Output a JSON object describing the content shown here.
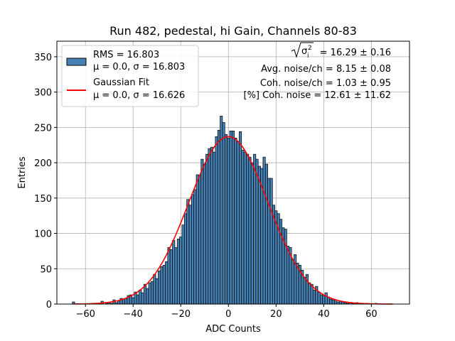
{
  "chart_data": {
    "type": "bar",
    "title": "Run 482, pedestal, hi Gain, Channels 80-83",
    "xlabel": "ADC Counts",
    "ylabel": "Entries",
    "xlim": [
      -72,
      76
    ],
    "ylim": [
      0,
      372
    ],
    "xticks": [
      -60,
      -40,
      -20,
      0,
      20,
      40,
      60
    ],
    "yticks": [
      0,
      50,
      100,
      150,
      200,
      250,
      300,
      350
    ],
    "grid": true,
    "bin_width": 1,
    "bins": [
      {
        "x": -65,
        "y": 3
      },
      {
        "x": -54,
        "y": 1
      },
      {
        "x": -53,
        "y": 4
      },
      {
        "x": -51,
        "y": 1
      },
      {
        "x": -50,
        "y": 2
      },
      {
        "x": -49,
        "y": 1
      },
      {
        "x": -48,
        "y": 6
      },
      {
        "x": -47,
        "y": 2
      },
      {
        "x": -46,
        "y": 5
      },
      {
        "x": -45,
        "y": 8
      },
      {
        "x": -44,
        "y": 7
      },
      {
        "x": -43,
        "y": 8
      },
      {
        "x": -42,
        "y": 12
      },
      {
        "x": -41,
        "y": 13
      },
      {
        "x": -40,
        "y": 9
      },
      {
        "x": -39,
        "y": 17
      },
      {
        "x": -38,
        "y": 13
      },
      {
        "x": -37,
        "y": 20
      },
      {
        "x": -36,
        "y": 16
      },
      {
        "x": -35,
        "y": 28
      },
      {
        "x": -34,
        "y": 22
      },
      {
        "x": -33,
        "y": 30
      },
      {
        "x": -32,
        "y": 32
      },
      {
        "x": -31,
        "y": 42
      },
      {
        "x": -30,
        "y": 36
      },
      {
        "x": -29,
        "y": 47
      },
      {
        "x": -28,
        "y": 53
      },
      {
        "x": -27,
        "y": 55
      },
      {
        "x": -26,
        "y": 60
      },
      {
        "x": -25,
        "y": 80
      },
      {
        "x": -24,
        "y": 77
      },
      {
        "x": -23,
        "y": 90
      },
      {
        "x": -22,
        "y": 80
      },
      {
        "x": -21,
        "y": 92
      },
      {
        "x": -20,
        "y": 95
      },
      {
        "x": -19,
        "y": 112
      },
      {
        "x": -18,
        "y": 128
      },
      {
        "x": -17,
        "y": 148
      },
      {
        "x": -16,
        "y": 140
      },
      {
        "x": -15,
        "y": 155
      },
      {
        "x": -14,
        "y": 162
      },
      {
        "x": -13,
        "y": 183
      },
      {
        "x": -12,
        "y": 182
      },
      {
        "x": -11,
        "y": 205
      },
      {
        "x": -10,
        "y": 198
      },
      {
        "x": -9,
        "y": 212
      },
      {
        "x": -8,
        "y": 220
      },
      {
        "x": -7,
        "y": 222
      },
      {
        "x": -6,
        "y": 215
      },
      {
        "x": -5,
        "y": 237
      },
      {
        "x": -4,
        "y": 246
      },
      {
        "x": -3,
        "y": 266
      },
      {
        "x": -2,
        "y": 257
      },
      {
        "x": -1,
        "y": 240
      },
      {
        "x": 0,
        "y": 235
      },
      {
        "x": 1,
        "y": 245
      },
      {
        "x": 2,
        "y": 245
      },
      {
        "x": 3,
        "y": 235
      },
      {
        "x": 4,
        "y": 230
      },
      {
        "x": 5,
        "y": 244
      },
      {
        "x": 6,
        "y": 218
      },
      {
        "x": 7,
        "y": 215
      },
      {
        "x": 8,
        "y": 212
      },
      {
        "x": 9,
        "y": 208
      },
      {
        "x": 10,
        "y": 200
      },
      {
        "x": 11,
        "y": 212
      },
      {
        "x": 12,
        "y": 205
      },
      {
        "x": 13,
        "y": 195
      },
      {
        "x": 14,
        "y": 192
      },
      {
        "x": 15,
        "y": 208
      },
      {
        "x": 16,
        "y": 198
      },
      {
        "x": 17,
        "y": 178
      },
      {
        "x": 18,
        "y": 178
      },
      {
        "x": 19,
        "y": 140
      },
      {
        "x": 20,
        "y": 132
      },
      {
        "x": 21,
        "y": 128
      },
      {
        "x": 22,
        "y": 120
      },
      {
        "x": 23,
        "y": 108
      },
      {
        "x": 24,
        "y": 106
      },
      {
        "x": 25,
        "y": 82
      },
      {
        "x": 26,
        "y": 80
      },
      {
        "x": 27,
        "y": 63
      },
      {
        "x": 28,
        "y": 70
      },
      {
        "x": 29,
        "y": 58
      },
      {
        "x": 30,
        "y": 55
      },
      {
        "x": 31,
        "y": 48
      },
      {
        "x": 32,
        "y": 38
      },
      {
        "x": 33,
        "y": 42
      },
      {
        "x": 34,
        "y": 30
      },
      {
        "x": 35,
        "y": 28
      },
      {
        "x": 36,
        "y": 20
      },
      {
        "x": 37,
        "y": 25
      },
      {
        "x": 38,
        "y": 17
      },
      {
        "x": 39,
        "y": 13
      },
      {
        "x": 40,
        "y": 12
      },
      {
        "x": 41,
        "y": 16
      },
      {
        "x": 42,
        "y": 10
      },
      {
        "x": 43,
        "y": 7
      },
      {
        "x": 44,
        "y": 6
      },
      {
        "x": 45,
        "y": 6
      },
      {
        "x": 46,
        "y": 3
      },
      {
        "x": 47,
        "y": 4
      },
      {
        "x": 48,
        "y": 3
      },
      {
        "x": 49,
        "y": 2
      },
      {
        "x": 50,
        "y": 1
      },
      {
        "x": 51,
        "y": 2
      },
      {
        "x": 52,
        "y": 1
      },
      {
        "x": 53,
        "y": 1
      },
      {
        "x": 54,
        "y": 2
      },
      {
        "x": 55,
        "y": 1
      },
      {
        "x": 58,
        "y": 1
      },
      {
        "x": 62,
        "y": 1
      }
    ],
    "fit": {
      "mu": 0.0,
      "sigma": 16.626,
      "amplitude": 237,
      "x_range": [
        -65,
        69
      ]
    },
    "legend": {
      "position": "top-left",
      "entries": [
        {
          "name": "histogram",
          "line1": "RMS = 16.803",
          "line2": "μ = 0.0, σ = 16.803"
        },
        {
          "name": "fit",
          "line1": "Gaussian Fit",
          "line2": "μ = 0.0, σ = 16.626"
        }
      ]
    },
    "annotations": {
      "sigma_prefix": "σ",
      "sigma_sub": "i",
      "sigma_sup": "2",
      "sigma_value": " = 16.29 ± 0.16",
      "avg_noise": "Avg. noise/ch = 8.15 ± 0.08",
      "coh_noise": "Coh. noise/ch = 1.03 ± 0.95",
      "coh_pct": "[%] Coh. noise = 12.61 ± 11.62"
    },
    "colors": {
      "bar_fill": "#4682b4",
      "bar_edge": "#000000",
      "fit_line": "#ff0000",
      "grid": "#b0b0b0",
      "legend_edge": "#cccccc"
    }
  }
}
